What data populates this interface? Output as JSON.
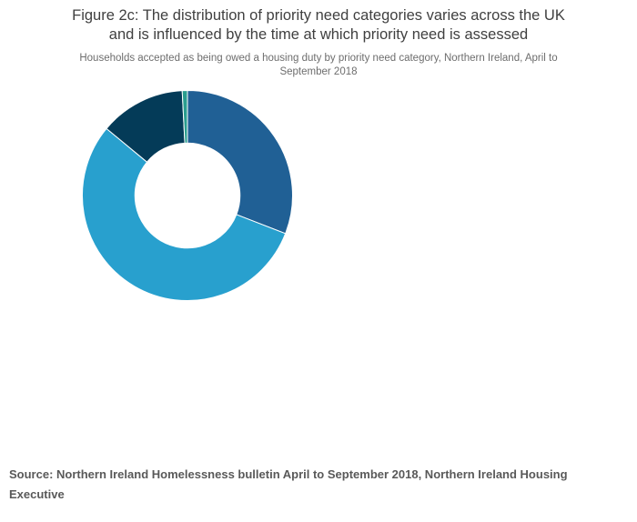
{
  "header": {
    "title_lines": [
      "Figure 2c: The distribution of priority need categories varies across the UK",
      "and is influenced by the time at which priority need is assessed"
    ],
    "subtitle_lines": [
      "Households accepted as being owed a housing duty by priority need category, Northern Ireland, April to",
      "September 2018"
    ]
  },
  "footer": {
    "source": "Source: Northern Ireland Homelessness bulletin April to September 2018, Northern Ireland Housing Executive"
  },
  "colors": {
    "background": "#ffffff",
    "title_text": "#404040",
    "subtitle_text": "#6d6d6d",
    "source_text": "#595959",
    "segment_separator": "#ffffff"
  },
  "chart_data": {
    "type": "pie",
    "variant": "donut",
    "title": "Figure 2c: The distribution of priority need categories varies across the UK and is influenced by the time at which priority need is assessed",
    "subtitle": "Households accepted as being owed a housing duty by priority need category, Northern Ireland, April to September 2018",
    "legend": "none",
    "data_labels": "none",
    "start_angle_deg": 0,
    "direction": "clockwise",
    "inner_radius_ratio": 0.5,
    "segments": [
      {
        "name": "dark-blue",
        "color": "#206095",
        "share_pct": 30.9
      },
      {
        "name": "light-blue",
        "color": "#28A0CE",
        "share_pct": 55.1
      },
      {
        "name": "dark-navy",
        "color": "#043B58",
        "share_pct": 13.2
      },
      {
        "name": "teal-green",
        "color": "#2A9D8F",
        "share_pct": 0.8
      }
    ]
  }
}
